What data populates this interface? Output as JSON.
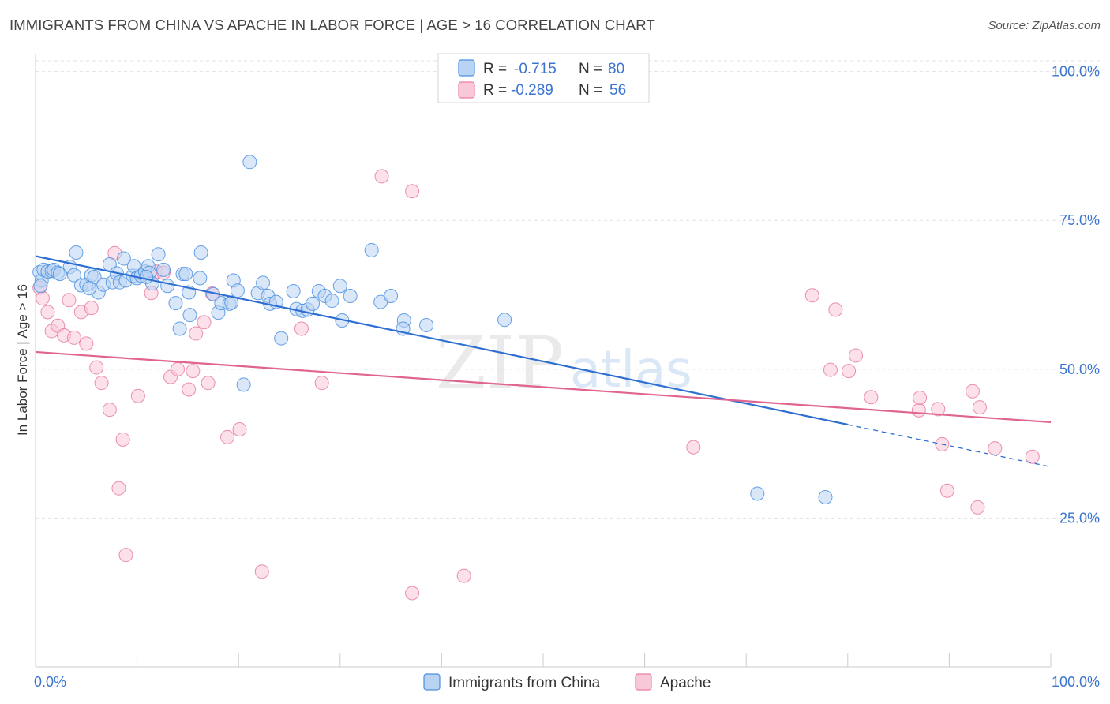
{
  "title": "IMMIGRANTS FROM CHINA VS APACHE IN LABOR FORCE | AGE > 16 CORRELATION CHART",
  "source": "Source: ZipAtlas.com",
  "watermark": {
    "zip": "ZIP",
    "atlas": "atlas"
  },
  "legend": {
    "r_label": "R =",
    "n_label": "N =",
    "entries": [
      {
        "r": "-0.715",
        "n": "80",
        "color": "#4a90e2"
      },
      {
        "r": "-0.289",
        "n": "56",
        "color": "#e87da0"
      }
    ]
  },
  "colors": {
    "china": "#4a90e2",
    "apache": "#e87da0",
    "china_line": "#2f6fd1",
    "apache_line": "#e0648f",
    "tick": "#3b74d0"
  },
  "chart_data": {
    "type": "scatter",
    "title": "IMMIGRANTS FROM CHINA VS APACHE IN LABOR FORCE | AGE > 16 CORRELATION CHART",
    "xlabel": "",
    "ylabel": "In Labor Force | Age > 16",
    "xlim": [
      0,
      100
    ],
    "ylim": [
      0,
      103
    ],
    "x_tick_labels": [
      "0.0%",
      "100.0%"
    ],
    "y_ticks": [
      25,
      50,
      75,
      100
    ],
    "y_tick_labels": [
      "25.0%",
      "50.0%",
      "75.0%",
      "100.0%"
    ],
    "grid": true,
    "legend_position": "top-center",
    "series": [
      {
        "name": "Immigrants from China",
        "color": "#4a90e2",
        "trend": {
          "x": [
            0,
            80
          ],
          "y": [
            69.0,
            40.7
          ],
          "dashed_to": [
            100,
            33.6
          ]
        },
        "points": [
          [
            0.4,
            66.3
          ],
          [
            0.6,
            64.9
          ],
          [
            0.8,
            66.7
          ],
          [
            1.2,
            66.4
          ],
          [
            1.6,
            66.5
          ],
          [
            1.8,
            66.7
          ],
          [
            2.2,
            66.2
          ],
          [
            2.4,
            66.0
          ],
          [
            3.4,
            67.2
          ],
          [
            3.8,
            65.8
          ],
          [
            4.0,
            69.6
          ],
          [
            4.5,
            64.1
          ],
          [
            5.0,
            64.2
          ],
          [
            5.5,
            65.8
          ],
          [
            5.8,
            65.5
          ],
          [
            6.2,
            62.9
          ],
          [
            6.7,
            64.2
          ],
          [
            7.3,
            67.6
          ],
          [
            7.6,
            64.6
          ],
          [
            8.0,
            66.1
          ],
          [
            8.3,
            64.6
          ],
          [
            8.7,
            68.6
          ],
          [
            8.9,
            64.9
          ],
          [
            9.6,
            65.7
          ],
          [
            9.7,
            67.3
          ],
          [
            10.0,
            65.3
          ],
          [
            10.4,
            65.7
          ],
          [
            10.8,
            66.4
          ],
          [
            11.1,
            67.3
          ],
          [
            11.2,
            66.2
          ],
          [
            11.5,
            64.4
          ],
          [
            12.1,
            69.3
          ],
          [
            12.6,
            66.7
          ],
          [
            13.0,
            64.0
          ],
          [
            13.8,
            61.1
          ],
          [
            14.2,
            56.8
          ],
          [
            14.5,
            66.0
          ],
          [
            14.8,
            66.0
          ],
          [
            15.1,
            62.9
          ],
          [
            15.2,
            59.1
          ],
          [
            16.2,
            65.3
          ],
          [
            16.3,
            69.6
          ],
          [
            17.5,
            62.6
          ],
          [
            18.0,
            59.5
          ],
          [
            18.3,
            61.1
          ],
          [
            19.1,
            61.0
          ],
          [
            19.3,
            61.2
          ],
          [
            19.5,
            64.9
          ],
          [
            19.9,
            63.2
          ],
          [
            20.5,
            47.4
          ],
          [
            21.1,
            84.8
          ],
          [
            21.9,
            62.8
          ],
          [
            22.4,
            64.5
          ],
          [
            22.9,
            62.3
          ],
          [
            23.1,
            61.0
          ],
          [
            23.7,
            61.3
          ],
          [
            24.2,
            55.2
          ],
          [
            25.4,
            63.1
          ],
          [
            25.7,
            60.1
          ],
          [
            26.3,
            59.8
          ],
          [
            26.8,
            60.0
          ],
          [
            27.3,
            61.0
          ],
          [
            27.9,
            63.1
          ],
          [
            28.5,
            62.3
          ],
          [
            29.2,
            61.5
          ],
          [
            30.0,
            64.0
          ],
          [
            30.2,
            58.2
          ],
          [
            31.0,
            62.3
          ],
          [
            33.1,
            70.0
          ],
          [
            34.0,
            61.3
          ],
          [
            35.0,
            62.3
          ],
          [
            36.3,
            58.2
          ],
          [
            36.2,
            56.8
          ],
          [
            38.5,
            57.4
          ],
          [
            46.2,
            58.3
          ],
          [
            71.1,
            29.1
          ],
          [
            77.8,
            28.5
          ],
          [
            0.5,
            64.0
          ],
          [
            5.3,
            63.6
          ],
          [
            10.9,
            65.5
          ]
        ]
      },
      {
        "name": "Apache",
        "color": "#e87da0",
        "trend": {
          "x": [
            0,
            100
          ],
          "y": [
            52.9,
            41.1
          ]
        },
        "points": [
          [
            0.4,
            63.7
          ],
          [
            0.7,
            61.9
          ],
          [
            1.2,
            59.6
          ],
          [
            1.6,
            56.4
          ],
          [
            2.2,
            57.3
          ],
          [
            2.8,
            55.7
          ],
          [
            3.3,
            61.6
          ],
          [
            3.8,
            55.3
          ],
          [
            4.5,
            59.6
          ],
          [
            5.0,
            54.3
          ],
          [
            5.5,
            60.3
          ],
          [
            6.0,
            50.3
          ],
          [
            6.5,
            47.7
          ],
          [
            7.3,
            43.2
          ],
          [
            7.8,
            69.5
          ],
          [
            8.2,
            30.0
          ],
          [
            8.6,
            38.2
          ],
          [
            8.9,
            18.8
          ],
          [
            10.1,
            45.5
          ],
          [
            11.4,
            62.8
          ],
          [
            11.9,
            66.4
          ],
          [
            12.6,
            66.2
          ],
          [
            13.3,
            48.7
          ],
          [
            14.0,
            50.0
          ],
          [
            15.1,
            46.6
          ],
          [
            15.5,
            49.7
          ],
          [
            15.8,
            56.0
          ],
          [
            16.6,
            57.9
          ],
          [
            17.0,
            47.7
          ],
          [
            17.4,
            62.7
          ],
          [
            18.9,
            38.6
          ],
          [
            20.1,
            39.9
          ],
          [
            22.3,
            16.0
          ],
          [
            26.2,
            56.8
          ],
          [
            28.2,
            47.7
          ],
          [
            34.1,
            82.4
          ],
          [
            37.1,
            79.9
          ],
          [
            37.1,
            12.4
          ],
          [
            42.2,
            15.3
          ],
          [
            64.8,
            36.9
          ],
          [
            76.5,
            62.4
          ],
          [
            78.3,
            49.9
          ],
          [
            78.8,
            60.0
          ],
          [
            80.1,
            49.7
          ],
          [
            80.8,
            52.3
          ],
          [
            82.3,
            45.3
          ],
          [
            87.0,
            43.1
          ],
          [
            87.1,
            45.2
          ],
          [
            88.9,
            43.3
          ],
          [
            89.3,
            37.4
          ],
          [
            89.8,
            29.6
          ],
          [
            92.3,
            46.3
          ],
          [
            92.8,
            26.8
          ],
          [
            93.0,
            43.6
          ],
          [
            94.5,
            36.7
          ],
          [
            98.2,
            35.3
          ]
        ]
      }
    ]
  },
  "bottom_legend": [
    {
      "label": "Immigrants from China",
      "color": "#4a90e2"
    },
    {
      "label": "Apache",
      "color": "#e87da0"
    }
  ]
}
